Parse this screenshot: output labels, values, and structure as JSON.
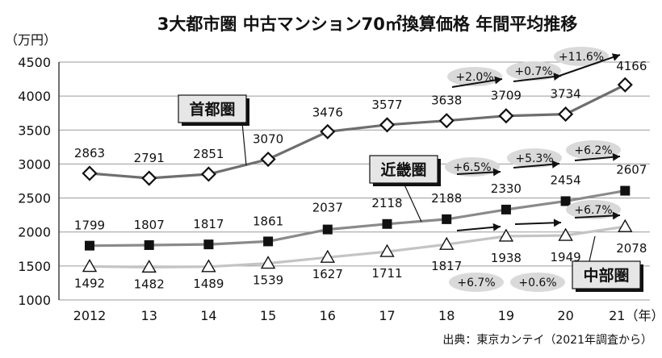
{
  "chart_data": {
    "type": "line",
    "title": "3大都市圏 中古マンション70㎡換算価格 年間平均推移",
    "ylabel": "（万円）",
    "source": "出典：東京カンテイ（2021年調査から）",
    "ylim": [
      1000,
      4500
    ],
    "yticks": [
      1000,
      1500,
      2000,
      2500,
      3000,
      3500,
      4000,
      4500
    ],
    "categories": [
      "2012",
      "13",
      "14",
      "15",
      "16",
      "17",
      "18",
      "19",
      "20",
      "21（年）"
    ],
    "grid": true,
    "series": [
      {
        "name": "首都圏",
        "marker": "diamond-open",
        "line_color": "#6e6e6e",
        "values": [
          2863,
          2791,
          2851,
          3070,
          3476,
          3577,
          3638,
          3709,
          3734,
          4166
        ],
        "changes": [
          {
            "label": "+2.0%",
            "from_index": 6,
            "to_index": 7
          },
          {
            "label": "+0.7%",
            "from_index": 7,
            "to_index": 8
          },
          {
            "label": "+11.6%",
            "from_index": 8,
            "to_index": 9
          }
        ]
      },
      {
        "name": "近畿圏",
        "marker": "square-filled",
        "line_color": "#8a8a8a",
        "values": [
          1799,
          1807,
          1817,
          1861,
          2037,
          2118,
          2188,
          2330,
          2454,
          2607
        ],
        "changes": [
          {
            "label": "+6.5%",
            "from_index": 6,
            "to_index": 7
          },
          {
            "label": "+5.3%",
            "from_index": 7,
            "to_index": 8
          },
          {
            "label": "+6.2%",
            "from_index": 8,
            "to_index": 9
          }
        ]
      },
      {
        "name": "中部圏",
        "marker": "triangle-open",
        "line_color": "#c4c4c4",
        "values": [
          1492,
          1482,
          1489,
          1539,
          1627,
          1711,
          1817,
          1938,
          1949,
          2078
        ],
        "changes": [
          {
            "label": "+6.7%",
            "from_index": 6,
            "to_index": 7
          },
          {
            "label": "+0.6%",
            "from_index": 7,
            "to_index": 8
          },
          {
            "label": "+6.7%",
            "from_index": 8,
            "to_index": 9
          }
        ]
      }
    ]
  }
}
